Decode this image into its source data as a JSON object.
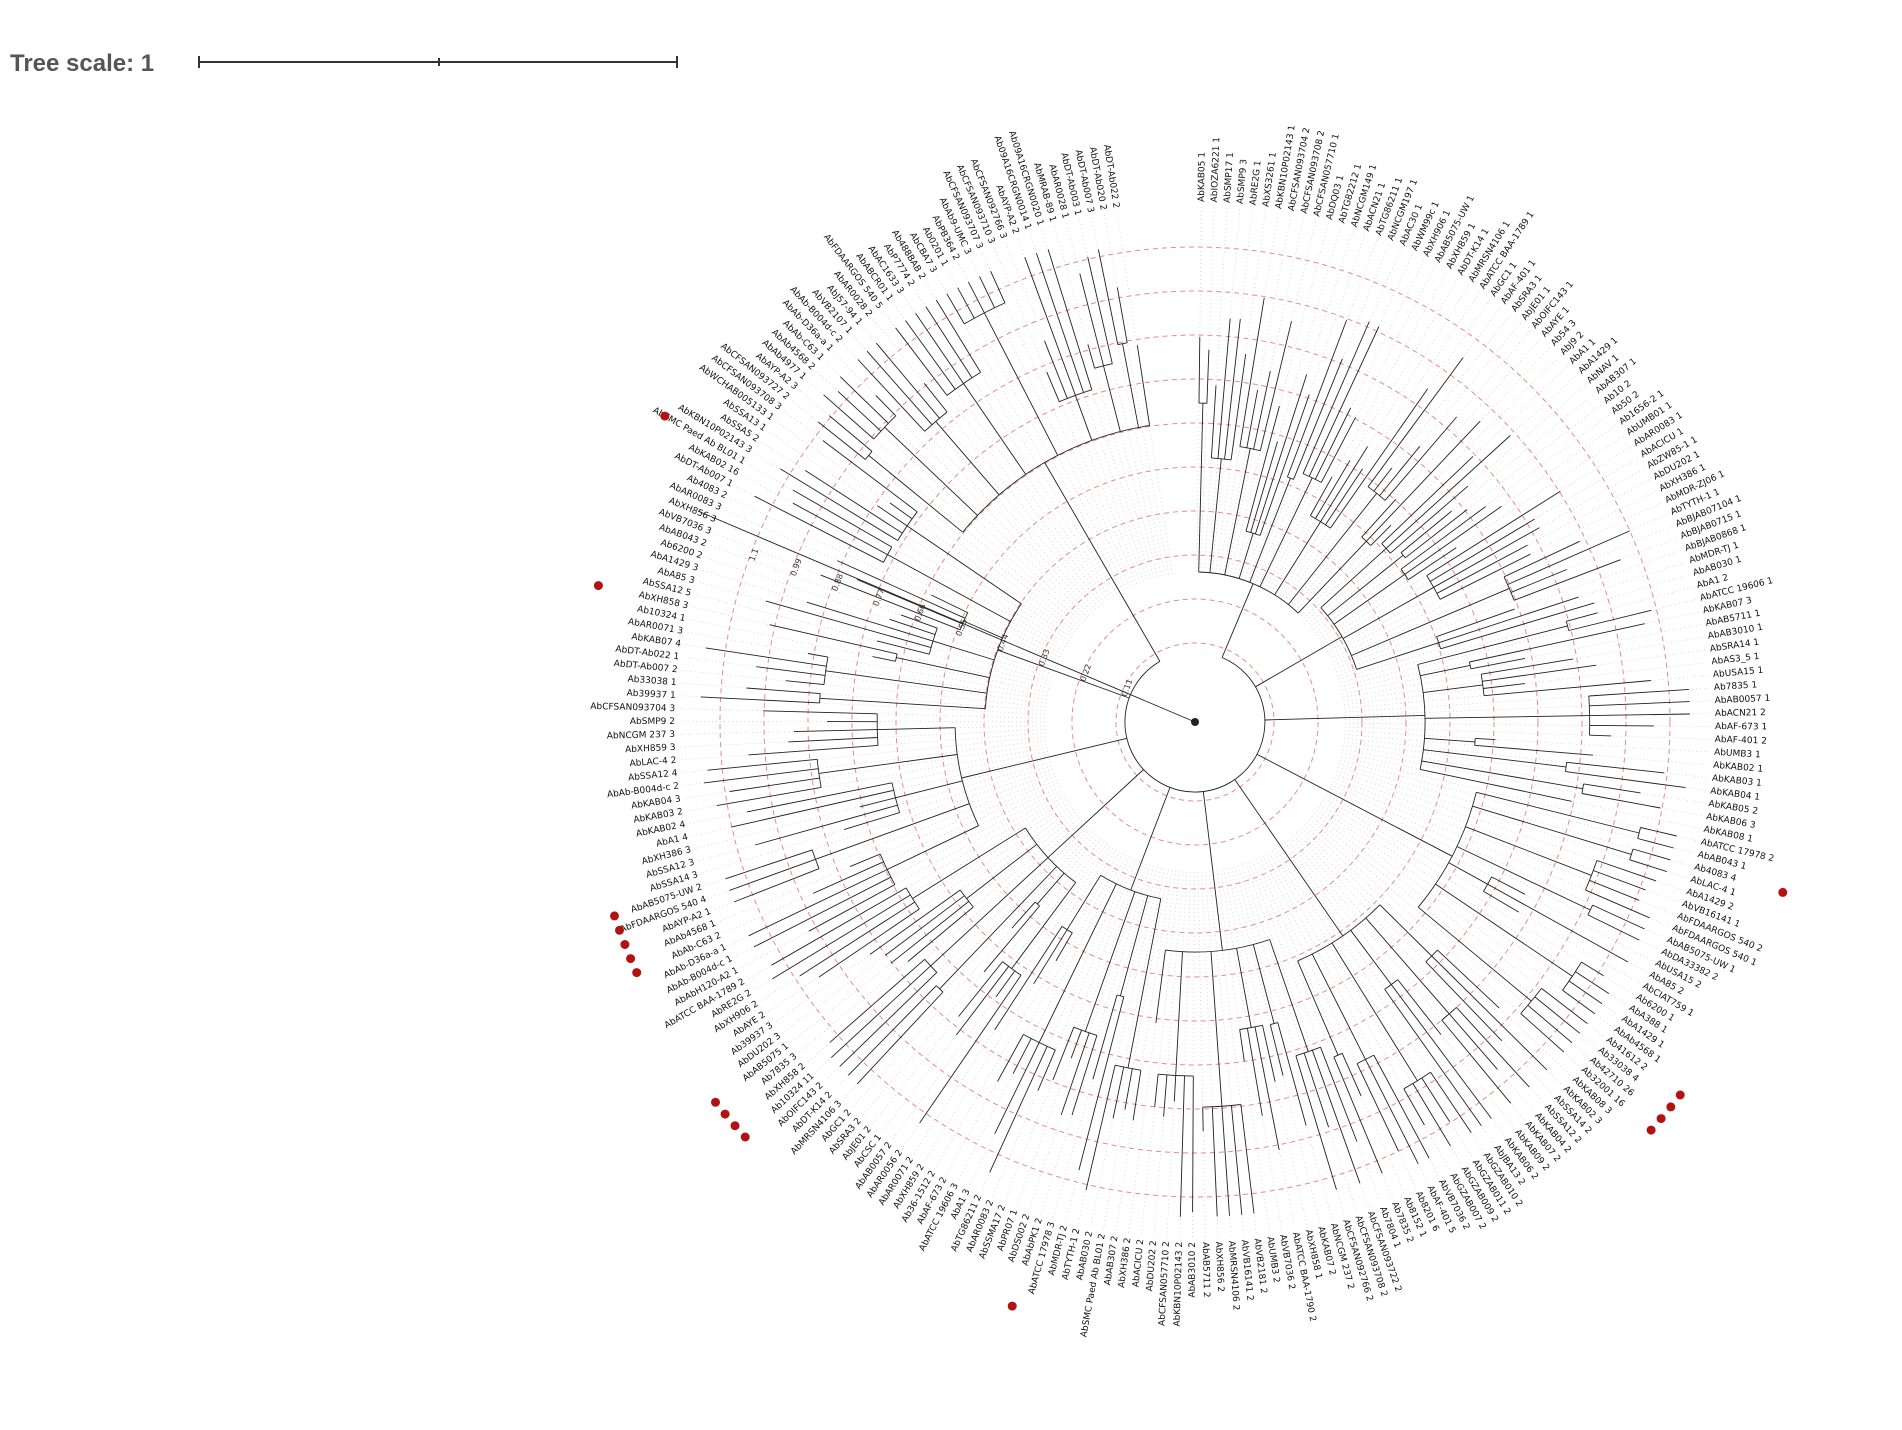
{
  "tree_scale": {
    "label": "Tree scale: 1"
  },
  "colors": {
    "branch": "#222222",
    "ring": "#e06060",
    "guide": "#c0c0c0",
    "marker": "#b31212"
  },
  "ring_values": [
    "0.11",
    "0.22",
    "0.33",
    "0.44",
    "0.55",
    "0.66",
    "0.77",
    "0.88",
    "0.99",
    "1.1"
  ],
  "clades": [
    {
      "name": "A",
      "leaves": [
        "AbKAB05 1",
        "AbIOZA6221 1",
        "AbSMP17 1",
        "AbSMP9 3",
        "AbRE2G 1",
        "AbXS3261 1",
        "AbKBN10P02143 1",
        "AbCFSAN093704 2",
        "AbCFSAN093708 2",
        "AbCFSAN057710 1",
        "AbDQ03 1",
        "AbTG82212 1",
        "AbNCGM149 1",
        "AbACN21 1",
        "AbTG86211 1",
        "AbNCGM197 1",
        "AbAC30 1",
        "AbWM99c 1",
        "AbXH906 1",
        "AbAB5075-UW 1",
        "AbXH859 1",
        "AbDT-K14 1",
        "AbMRSN4106 1",
        "AbATCC BAA-1789 1",
        "AbGC1 1",
        "AbAF-401 1",
        "AbSRA3 1",
        "AbJE01 1",
        "AbOIFC143 1",
        "AbAYE 1",
        "Ab54 3",
        "AbJ9 2"
      ],
      "markers": []
    },
    {
      "name": "B",
      "leaves": [
        "AbA1 1",
        "AbA1429 1",
        "AbNAV 1",
        "AbAB307 1",
        "Ab10 2",
        "Ab50 2",
        "Ab1656-2 1",
        "AbUMB01 1",
        "AbAR0083 1",
        "AbACICU 1",
        "AbZW85-1 1",
        "AbDU202 1",
        "AbXH386 1",
        "AbMDR-ZJ06 1",
        "AbTYTH-1 1",
        "AbBJAB07104 1",
        "AbBJAB0715 1",
        "AbBJAB0868 1",
        "AbMDR-TJ 1",
        "AbAB030 1"
      ],
      "markers": []
    },
    {
      "name": "C",
      "leaves": [
        "AbA1 2",
        "AbATCC 19606 1",
        "AbKAB07 3",
        "AbAB5711 1",
        "AbAB3010 1",
        "AbSRA14 1",
        "AbAS3_5 1",
        "AbUSA15 1",
        "Ab7835 1",
        "AbAB0057 1",
        "AbACN21 2",
        "AbAF-673 1",
        "AbAF-401 2",
        "AbUMB3 1",
        "AbKAB02 1",
        "AbKAB03 1",
        "AbKAB04 1",
        "AbKAB05 2",
        "AbKAB06 3",
        "AbKAB08 1"
      ],
      "markers": []
    },
    {
      "name": "D",
      "leaves": [
        "AbATCC 17978 2",
        "AbAB043 1",
        "Ab4083 4",
        "AbLAC-4 1",
        "AbA1429 2",
        "AbVB16141 1",
        "AbFDAARGOS 540 2",
        "AbFDAARGOS 540 1",
        "AbAB5075-UW 1",
        "AbDA33382 2",
        "AbUSA15 2",
        "AbA85 2",
        "AbCIAT759 1",
        "Ab6200 1",
        "AbA388 1",
        "AbA1429 1",
        "AbAb4568 1",
        "Ab41612 2",
        "Ab33038 4",
        "Ab42710 26",
        "Ab32001 16"
      ],
      "markers": [
        2,
        17,
        18,
        19,
        20
      ]
    },
    {
      "name": "E",
      "leaves": [
        "AbKAB08 3",
        "AbKAB02 3",
        "AbSSA14 2",
        "AbSSA12 2",
        "AbKAB04 2",
        "AbKAB07 2",
        "AbKAB09 2",
        "AbKAB06 2",
        "AbJBA13 2",
        "AbGZAB010 2",
        "AbGZAB011 2",
        "AbGZAB009 2",
        "AbGZAB007 2",
        "AbVB7036 2",
        "AbAF-401 5",
        "Ab8201 6",
        "Ab8152 1",
        "Ab7835 2"
      ],
      "markers": []
    },
    {
      "name": "F",
      "leaves": [
        "Ab7804 1",
        "AbCFSAN093722 2",
        "AbCFSAN093708 2",
        "AbCFSAN092766 2",
        "AbNCGM 237 2",
        "AbKAB07 2",
        "AbXH858 1",
        "AbATCC BAA-1790 2",
        "AbVB7036 2",
        "AbUMB3 2",
        "AbVB2181 2",
        "AbVB16141 2",
        "AbMRSN4106 2",
        "AbXH856 2",
        "AbAB5711 2",
        "AbAB3010 2",
        "AbKBN10P02143 2",
        "AbCFSAN057710 2",
        "AbDU202 2",
        "AbACICU 2",
        "AbXH386 2"
      ],
      "markers": []
    },
    {
      "name": "G",
      "leaves": [
        "AbAB307 2",
        "AbSMC Paed Ab BL01 2",
        "AbAB030 2",
        "AbTYTH-1 2",
        "AbMDR-TJ 2",
        "AbATCC 17978 3",
        "AbAbPK1 2",
        "AbDS002 2",
        "AbPR07 1",
        "AbSSMA17 2",
        "AbAR0083 2",
        "AbTG86211 2",
        "AbA1 3",
        "AbATCC 19606 3",
        "AbAF-673 2",
        "Ab36-1512 2",
        "AbXH859 2",
        "AbAR0071 2"
      ],
      "markers": [
        6
      ]
    },
    {
      "name": "H",
      "leaves": [
        "AbAR0056 2",
        "AbAB0057 2",
        "AbCSC 1",
        "AbJE01 2",
        "AbSRA3 2",
        "AbGC1 2",
        "AbMRSN4106 3",
        "AbDT-K14 2",
        "AbOIFC143 2",
        "Ab10324 11",
        "AbXH858 2",
        "Ab7835 3",
        "AbAB5075 1",
        "AbDU202 3",
        "Ab39937 3",
        "AbAYE 2",
        "AbXH906 2",
        "AbRE2G 2",
        "AbATCC BAA-1789 2"
      ],
      "markers": [
        9,
        10,
        11,
        12
      ]
    },
    {
      "name": "I",
      "leaves": [
        "AbAbH120-A2 1",
        "AbAb-B004d-c 1",
        "AbAb-D36a-a 1",
        "AbAb-C63 2",
        "AbAb4568 1",
        "AbAYP-A2 1",
        "AbFDAARGOS 540 4",
        "AbAB5075-UW 2",
        "AbSSA14 3",
        "AbSSA12 3",
        "AbXH386 3",
        "AbA1 4",
        "AbKAB02 4",
        "AbKAB03 2",
        "AbKAB04 3",
        "AbAb-B004d-c 2",
        "AbSSA12 4",
        "AbLAC-4 2",
        "AbXH859 3",
        "AbNCGM 237 3",
        "AbSMP9 2",
        "AbCFSAN093704 3"
      ],
      "markers": [
        3,
        4,
        5,
        6,
        7
      ]
    },
    {
      "name": "J",
      "leaves": [
        "Ab39937 1",
        "Ab33038 1",
        "AbDT-Ab007 2",
        "AbDT-Ab022 1",
        "AbKAB07 4",
        "AbAR0071 3",
        "Ab10324 1",
        "AbXH858 3",
        "AbSSA12 5",
        "AbA85 3",
        "AbA1429 3",
        "Ab6200 2",
        "AbAB043 2",
        "AbVB7036 3",
        "AbXH856 3",
        "AbAR0083 3",
        "Ab4083 2",
        "AbDT-Ab007 1",
        "AbKAB02 16",
        "AbSMC Paed Ab BL01 1",
        "AbKBN10P02143 3",
        "AbSSA5 2",
        "AbSSA13 1",
        "AbWCHAB005133 1",
        "AbCFSAN093708 3"
      ],
      "markers": [
        7,
        19
      ]
    },
    {
      "name": "K",
      "leaves": [
        "AbCFSAN093727 2",
        "AbAYP-A2 3",
        "AbAb4977 1",
        "AbAb4568 2",
        "AbAb-C63 1",
        "AbAb-D36a-a 1",
        "AbAb-B004d-c 2",
        "AbVB2107 1",
        "AbJ57-94 1",
        "AbAR0028 2",
        "AbFDAARGOS 540 5",
        "AbABCR01 1",
        "AbAC1633 3",
        "AbP7774 2",
        "Ab488BAB 2",
        "AbCBA7 3",
        "Ab0201 1",
        "AbPB364 2",
        "AbAb9-UMC 3",
        "AbCFSAN093707 3",
        "AbCFSAN093710 3",
        "AbCFSAN092766 3",
        "AbAYP-A2 2",
        "Ab09A16CRGN0014 1",
        "Ab09A16CRGN0020 1",
        "AbMRAB-89 1",
        "AbAR0028 1",
        "AbDT-Ab003 1",
        "AbDT-Ab007 3",
        "AbDT-Ab020 2",
        "AbDT-Ab022 2"
      ],
      "markers": []
    }
  ]
}
